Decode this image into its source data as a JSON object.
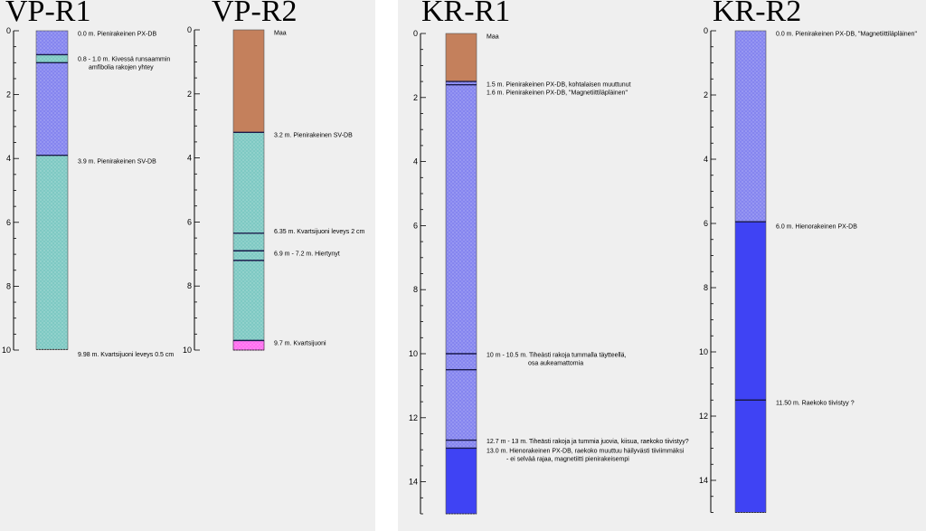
{
  "panels": [
    {
      "title": "VP-R1",
      "depth_max": 10,
      "axis_ticks": [
        0,
        2,
        4,
        6,
        8,
        10
      ],
      "layers": [
        {
          "from": 0.0,
          "to": 0.75,
          "rock": "px"
        },
        {
          "from": 0.75,
          "to": 1.0,
          "rock": "sv"
        },
        {
          "from": 1.0,
          "to": 3.9,
          "rock": "px"
        },
        {
          "from": 3.9,
          "to": 9.98,
          "rock": "sv"
        }
      ],
      "contacts": [
        0.75,
        1.0,
        3.9
      ],
      "notes": [
        {
          "depth": 0.15,
          "lines": [
            "0.0 m. Pienirakeinen PX-DB"
          ]
        },
        {
          "depth": 0.95,
          "lines": [
            "0.8 - 1.0 m.  Kivessä runsaammin",
            "amfibolia rakojen yhtey"
          ]
        },
        {
          "depth": 4.15,
          "lines": [
            "3.9 m. Pienirakeinen SV-DB"
          ]
        },
        {
          "depth": 10.2,
          "lines": [
            "9.98 m. Kvartsijuoni leveys 0.5 cm"
          ]
        }
      ]
    },
    {
      "title": "VP-R2",
      "depth_max": 10,
      "axis_ticks": [
        0,
        2,
        4,
        6,
        8,
        10
      ],
      "layers": [
        {
          "from": 0.0,
          "to": 3.2,
          "rock": "maa"
        },
        {
          "from": 3.2,
          "to": 9.7,
          "rock": "sv"
        },
        {
          "from": 9.7,
          "to": 10.0,
          "rock": "qz"
        }
      ],
      "contacts": [
        3.2,
        6.35,
        6.9,
        7.2,
        9.7
      ],
      "notes": [
        {
          "depth": 0.15,
          "lines": [
            "Maa"
          ]
        },
        {
          "depth": 3.35,
          "lines": [
            "3.2 m. Pienirakeinen SV-DB"
          ]
        },
        {
          "depth": 6.35,
          "lines": [
            "6.35 m. Kvartsijuoni leveys 2 cm"
          ]
        },
        {
          "depth": 7.05,
          "lines": [
            "6.9 m - 7.2 m. Hiertynyt"
          ]
        },
        {
          "depth": 9.85,
          "lines": [
            "9.7 m. Kvartsijuoni"
          ]
        }
      ]
    },
    {
      "title": "KR-R1",
      "depth_max": 15,
      "axis_ticks": [
        0,
        2,
        4,
        6,
        8,
        10,
        12,
        14
      ],
      "layers": [
        {
          "from": 0.0,
          "to": 1.5,
          "rock": "maa"
        },
        {
          "from": 1.5,
          "to": 12.95,
          "rock": "px"
        },
        {
          "from": 12.95,
          "to": 15.0,
          "rock": "cg"
        }
      ],
      "contacts": [
        1.5,
        1.6,
        10.0,
        10.5,
        12.7,
        12.95
      ],
      "notes": [
        {
          "depth": 0.15,
          "lines": [
            "Maa"
          ]
        },
        {
          "depth": 1.65,
          "lines": [
            "1.5 m. Pienirakeinen PX-DB, kohtalaisen muuttunut"
          ]
        },
        {
          "depth": 1.9,
          "lines": [
            "1.6 m. Pienirakeinen PX-DB, \"Magnetiittiläpläinen\""
          ]
        },
        {
          "depth": 10.1,
          "lines": [
            "10 m - 10.5 m. Tiheästi rakoja tummalla täytteellä,",
            "osa aukeamattomia"
          ]
        },
        {
          "depth": 12.8,
          "lines": [
            "12.7 m - 13 m. Tiheästi rakoja ja tummia juovia, kiisua, raekoko tiivistyy?"
          ]
        },
        {
          "depth": 13.1,
          "lines": [
            "13.0 m. Hienorakeinen PX-DB, raekoko muuttuu häilyvästi tiiviimmäksi",
            "- ei selvää rajaa, magnetiitti pienirakeisempi"
          ]
        }
      ]
    },
    {
      "title": "KR-R2",
      "depth_max": 15,
      "axis_ticks": [
        0,
        2,
        4,
        6,
        8,
        10,
        12,
        14
      ],
      "layers": [
        {
          "from": 0.0,
          "to": 5.95,
          "rock": "px"
        },
        {
          "from": 5.95,
          "to": 15.0,
          "rock": "cg"
        }
      ],
      "contacts": [
        5.95,
        11.5
      ],
      "notes": [
        {
          "depth": 0.15,
          "lines": [
            "0.0 m. Pienirakeinen PX-DB, \"Magnetiittiläpläinen\""
          ]
        },
        {
          "depth": 6.15,
          "lines": [
            "6.0 m. Hienorakeinen PX-DB"
          ]
        },
        {
          "depth": 11.65,
          "lines": [
            "11.50 m. Raekoko tiivistyy ?"
          ]
        }
      ]
    }
  ],
  "rock_colors": {
    "px": "#8585ef",
    "sv": "#7ec9c3",
    "maa": "#c4805c",
    "qz": "#ff6ef0",
    "cg": "#3f43f4"
  }
}
